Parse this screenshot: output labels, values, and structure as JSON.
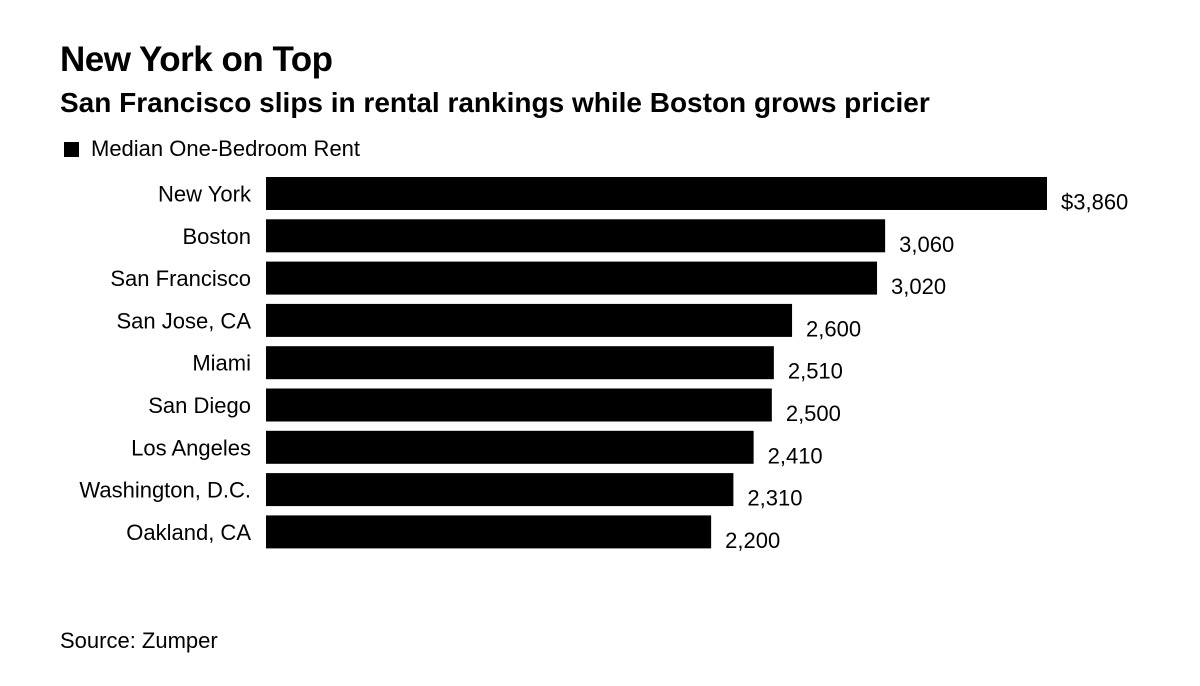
{
  "title": "New York on Top",
  "subtitle": "San Francisco slips in rental rankings while Boston grows pricier",
  "source": "Source: Zumper",
  "colors": {
    "bar": "#000000",
    "text": "#000000",
    "background": "#ffffff"
  },
  "chart_data": {
    "type": "bar",
    "orientation": "horizontal",
    "title": "New York on Top",
    "subtitle": "San Francisco slips in rental rankings while Boston grows pricier",
    "xlabel": "",
    "ylabel": "",
    "grid": false,
    "legend_position": "top-left",
    "xlim": [
      0,
      4000
    ],
    "categories": [
      "New York",
      "Boston",
      "San Francisco",
      "San Jose, CA",
      "Miami",
      "San Diego",
      "Los Angeles",
      "Washington, D.C.",
      "Oakland, CA"
    ],
    "series": [
      {
        "name": "Median One-Bedroom Rent",
        "values": [
          3860,
          3060,
          3020,
          2600,
          2510,
          2500,
          2410,
          2310,
          2200
        ],
        "labels": [
          "$3,860",
          "3,060",
          "3,020",
          "2,600",
          "2,510",
          "2,500",
          "2,410",
          "2,310",
          "2,200"
        ]
      }
    ]
  }
}
